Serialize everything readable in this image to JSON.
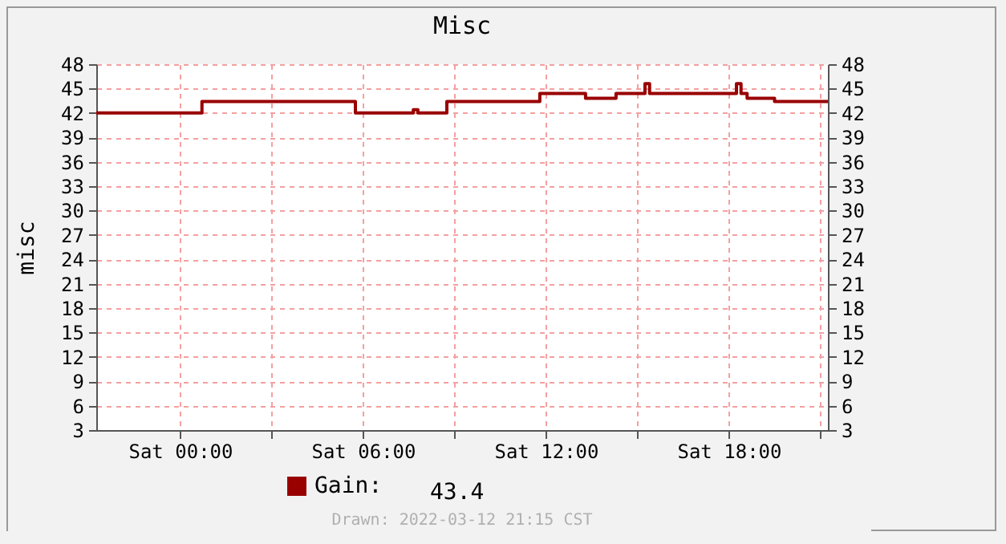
{
  "chart_data": {
    "type": "step",
    "title": "Misc",
    "ylabel": "misc",
    "xlim": [
      "2022-03-11T21:15",
      "2022-03-12T21:15"
    ],
    "xticks": [
      {
        "value": "2022-03-12T00:00",
        "label": "Sat 00:00"
      },
      {
        "value": "2022-03-12T03:00",
        "label": null
      },
      {
        "value": "2022-03-12T06:00",
        "label": "Sat 06:00"
      },
      {
        "value": "2022-03-12T09:00",
        "label": null
      },
      {
        "value": "2022-03-12T12:00",
        "label": "Sat 12:00"
      },
      {
        "value": "2022-03-12T15:00",
        "label": null
      },
      {
        "value": "2022-03-12T18:00",
        "label": "Sat 18:00"
      },
      {
        "value": "2022-03-12T21:00",
        "label": null
      }
    ],
    "ylim": [
      3,
      48
    ],
    "yticks": [
      3,
      6,
      9,
      12,
      15,
      18,
      21,
      24,
      27,
      30,
      33,
      36,
      39,
      42,
      45,
      48
    ],
    "y2lim": [
      3,
      48
    ],
    "y2ticks": [
      3,
      6,
      9,
      12,
      15,
      18,
      21,
      24,
      27,
      30,
      33,
      36,
      39,
      42,
      45,
      48
    ],
    "series": [
      {
        "name": "Gain:",
        "color": "#990000",
        "x": [
          "2022-03-11T21:15",
          "2022-03-12T00:43",
          "2022-03-12T05:45",
          "2022-03-12T07:39",
          "2022-03-12T07:48",
          "2022-03-12T08:45",
          "2022-03-12T11:48",
          "2022-03-12T13:18",
          "2022-03-12T14:18",
          "2022-03-12T15:15",
          "2022-03-12T15:24",
          "2022-03-12T18:15",
          "2022-03-12T18:24",
          "2022-03-12T18:36",
          "2022-03-12T19:30",
          "2022-03-12T21:15"
        ],
        "values": [
          42,
          43.4,
          42,
          42.4,
          42,
          43.4,
          44.4,
          43.8,
          44.4,
          45.6,
          44.4,
          45.6,
          44.4,
          43.8,
          43.4,
          43.4
        ]
      }
    ],
    "grid": true,
    "legend": "bottom",
    "marker": "none",
    "annotations": [
      "43.4",
      "Drawn: 2022-03-12 21:15 CST"
    ]
  }
}
